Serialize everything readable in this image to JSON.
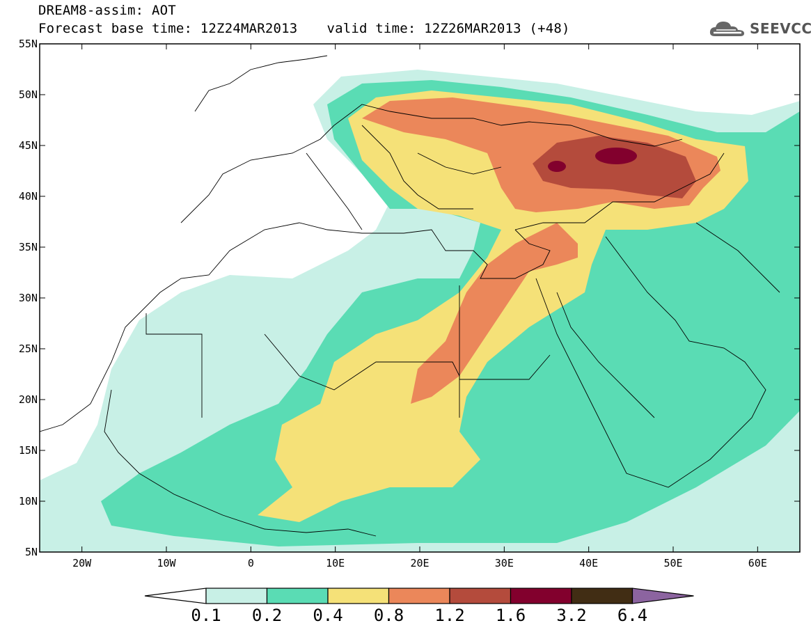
{
  "header": {
    "title_line1": "DREAM8-assim: AOT",
    "title_line2_base": "Forecast base time: 12Z24MAR2013",
    "title_line2_valid": "valid time: 12Z26MAR2013 (+48)"
  },
  "logo": {
    "text": "SEEVCCC",
    "icon": "cloud-icon"
  },
  "map": {
    "lat_labels": [
      "55N",
      "50N",
      "45N",
      "40N",
      "35N",
      "30N",
      "25N",
      "20N",
      "15N",
      "10N",
      "5N"
    ],
    "lon_labels": [
      "20W",
      "10W",
      "0",
      "10E",
      "20E",
      "30E",
      "40E",
      "50E",
      "60E"
    ],
    "lat_range": [
      5,
      55
    ],
    "lon_range": [
      -25,
      65
    ]
  },
  "colorbar": {
    "labels": [
      "0.1",
      "0.2",
      "0.4",
      "0.8",
      "1.2",
      "1.6",
      "3.2",
      "6.4"
    ],
    "colors": {
      "below": "#ffffff",
      "0.1-0.2": "#c8f0e6",
      "0.2-0.4": "#5adcb4",
      "0.4-0.8": "#f5e178",
      "0.8-1.2": "#eb875a",
      "1.2-1.6": "#b44b3c",
      "1.6-3.2": "#82002d",
      "3.2-6.4": "#412d14",
      "above": "#8c64a0"
    }
  }
}
